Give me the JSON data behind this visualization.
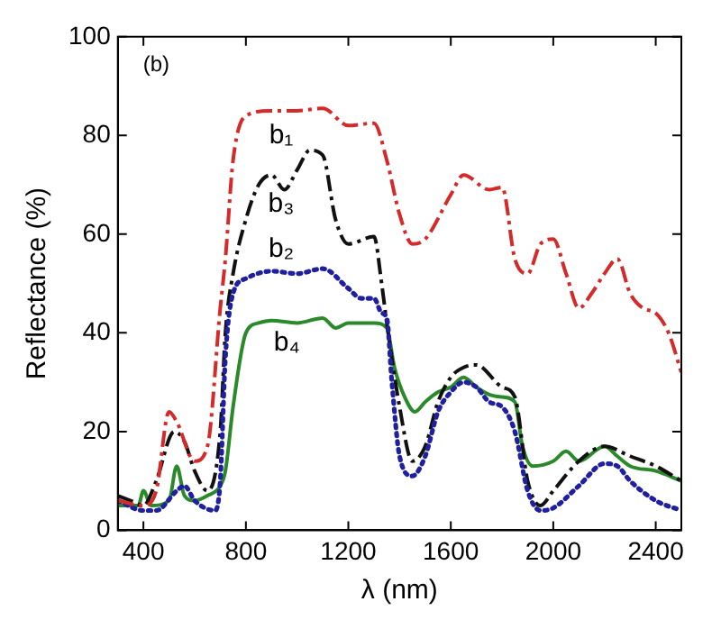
{
  "chart_data": {
    "type": "line",
    "xlabel": "λ (nm)",
    "ylabel": "Reflectance (%)",
    "xlim": [
      300,
      2500
    ],
    "ylim": [
      0,
      100
    ],
    "xticks": [
      400,
      800,
      1200,
      1600,
      2000,
      2400
    ],
    "yticks": [
      0,
      20,
      40,
      60,
      80,
      100
    ],
    "grid": false,
    "legend": false,
    "marker": "none",
    "annotations": [
      "(b)"
    ],
    "series": [
      {
        "name": "b₁",
        "color": "#d42a2a",
        "line_style": "dashed",
        "x": [
          300,
          400,
          450,
          500,
          530,
          600,
          650,
          700,
          720,
          750,
          800,
          900,
          1000,
          1100,
          1200,
          1300,
          1350,
          1400,
          1450,
          1500,
          1600,
          1650,
          1750,
          1800,
          1850,
          1900,
          1950,
          2000,
          2050,
          2100,
          2150,
          2200,
          2250,
          2300,
          2350,
          2400,
          2450,
          2500
        ],
        "values": [
          6,
          5,
          8,
          24,
          22,
          14,
          17,
          45,
          55,
          75,
          84,
          85,
          85,
          85.5,
          82,
          82.5,
          75,
          64,
          58,
          59,
          68,
          72,
          69,
          69.5,
          55,
          52,
          58,
          59,
          52,
          45,
          48,
          52,
          55,
          48,
          45,
          44,
          40,
          32
        ]
      },
      {
        "name": "b₂",
        "color": "#1f1fa0",
        "line_style": "dotted",
        "x": [
          300,
          400,
          450,
          530,
          560,
          600,
          680,
          700,
          720,
          750,
          800,
          900,
          1000,
          1100,
          1200,
          1250,
          1300,
          1330,
          1350,
          1370,
          1400,
          1450,
          1500,
          1550,
          1600,
          1650,
          1700,
          1750,
          1800,
          1850,
          1900,
          1950,
          2000,
          2100,
          2200,
          2250,
          2300,
          2400,
          2500
        ],
        "values": [
          6,
          4,
          4,
          8,
          9,
          6,
          4,
          10,
          35,
          48,
          51,
          52.5,
          52,
          53,
          49,
          47,
          47,
          44,
          43,
          30,
          15,
          11,
          15,
          24,
          28,
          30,
          29,
          26,
          25,
          20,
          8,
          4,
          4.5,
          9,
          13.5,
          13,
          10,
          6,
          4
        ]
      },
      {
        "name": "b₃",
        "color": "#111111",
        "line_style": "dashed",
        "x": [
          300,
          350,
          400,
          450,
          520,
          560,
          600,
          650,
          700,
          720,
          750,
          800,
          850,
          900,
          950,
          1000,
          1050,
          1100,
          1150,
          1200,
          1300,
          1330,
          1350,
          1400,
          1450,
          1500,
          1550,
          1600,
          1650,
          1700,
          1800,
          1850,
          1900,
          1950,
          2000,
          2100,
          2200,
          2300,
          2400,
          2500
        ],
        "values": [
          7,
          6,
          5,
          10,
          20,
          18,
          12,
          8,
          20,
          40,
          52,
          63,
          70,
          72,
          69,
          73,
          77,
          76,
          63,
          58,
          59.5,
          50,
          42,
          25,
          14,
          17,
          26,
          31,
          33,
          33.5,
          29,
          27,
          10,
          5,
          8,
          14,
          17,
          15,
          13,
          10
        ]
      },
      {
        "name": "b₄",
        "color": "#2a8a2a",
        "line_style": "solid",
        "x": [
          300,
          380,
          400,
          430,
          500,
          530,
          560,
          600,
          650,
          700,
          720,
          750,
          800,
          850,
          900,
          1000,
          1100,
          1150,
          1200,
          1300,
          1350,
          1380,
          1420,
          1460,
          1500,
          1550,
          1600,
          1650,
          1700,
          1750,
          1800,
          1850,
          1880,
          1920,
          2000,
          2050,
          2100,
          2200,
          2250,
          2300,
          2400,
          2500
        ],
        "values": [
          5,
          5,
          8,
          5,
          6,
          13,
          7,
          6,
          7,
          9,
          12,
          25,
          40,
          42,
          42.5,
          42,
          43,
          41,
          42,
          42,
          41,
          33,
          27,
          24,
          26,
          28,
          29,
          31,
          29,
          27.5,
          27,
          26,
          17,
          13,
          14,
          16,
          14,
          17,
          15,
          13,
          12,
          10
        ]
      }
    ]
  }
}
